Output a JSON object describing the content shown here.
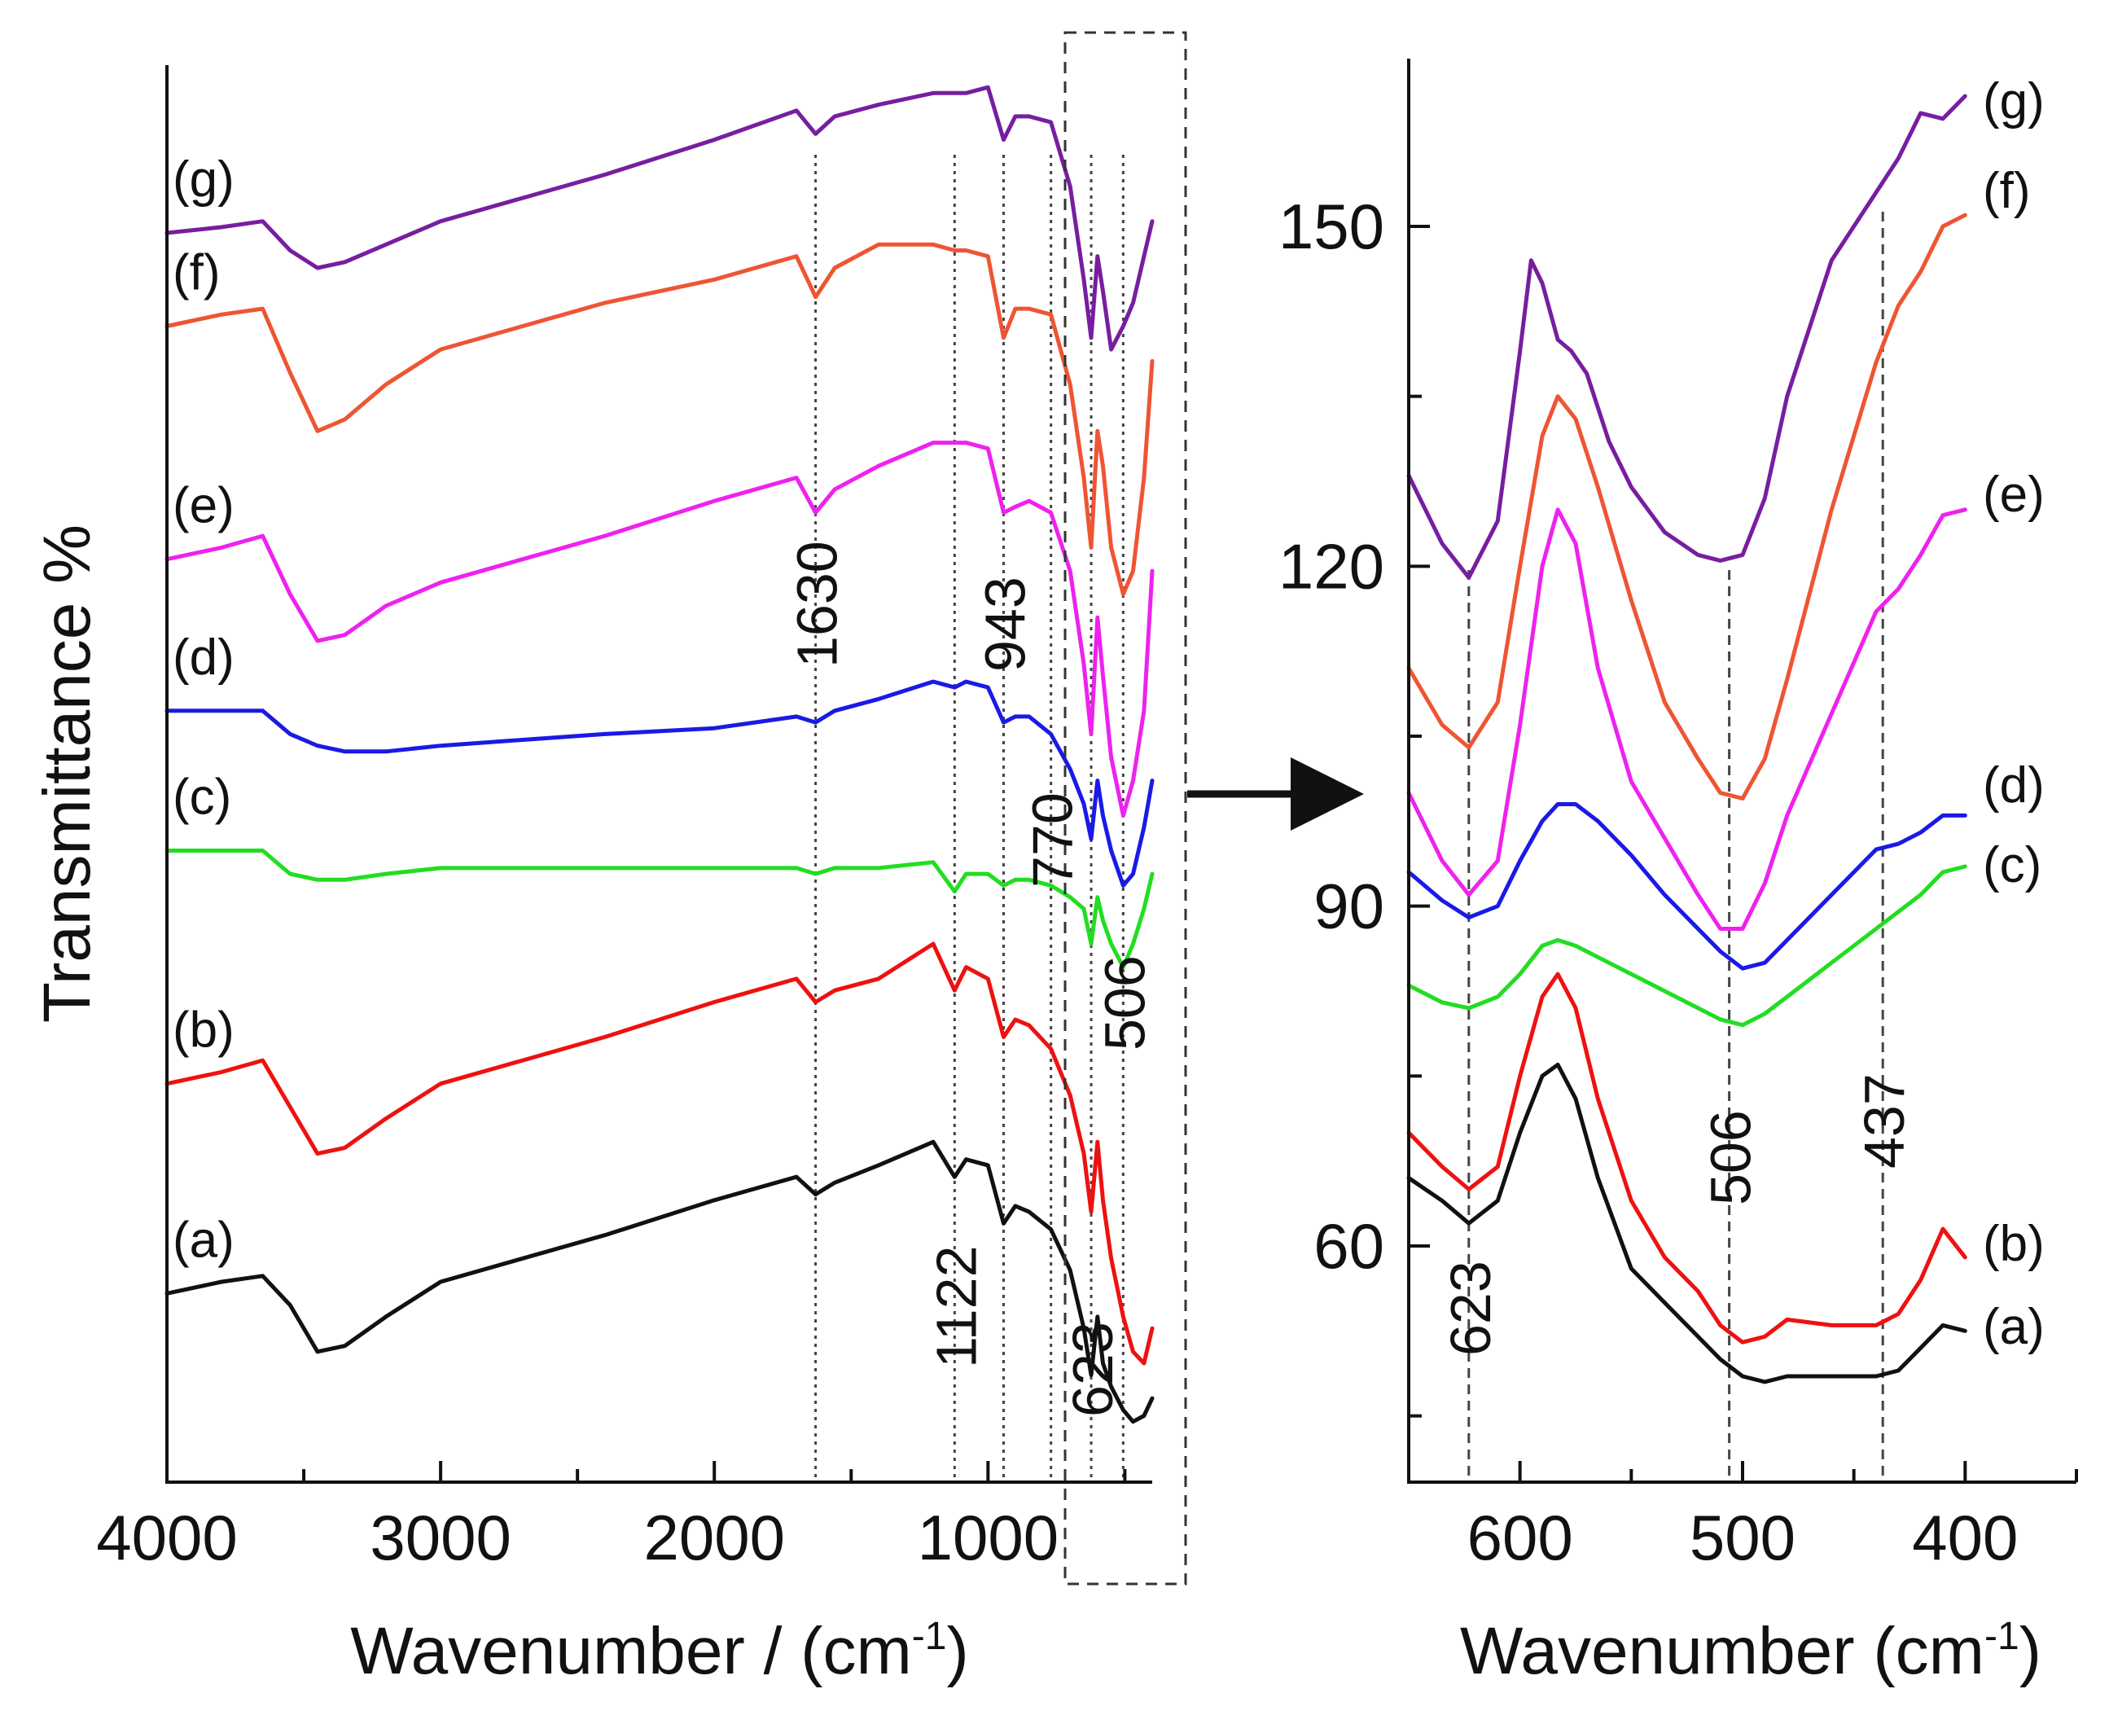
{
  "chart_data": [
    {
      "type": "line",
      "panel": "left",
      "title": "",
      "xlabel": "Wavenumber / (cm",
      "xlabel_superscript": "-1",
      "xlabel_suffix": ")",
      "ylabel": "Transmittance %",
      "xlim": [
        4000,
        400
      ],
      "x_reversed": true,
      "x_ticks": [
        4000,
        3000,
        2000,
        1000
      ],
      "y_ticks_shown": false,
      "grid": false,
      "legend": "inline labels at left",
      "peak_markers": [
        {
          "x": 1630,
          "label": "1630"
        },
        {
          "x": 1122,
          "label": "1122"
        },
        {
          "x": 943,
          "label": "943"
        },
        {
          "x": 770,
          "label": "770"
        },
        {
          "x": 623,
          "label": "623"
        },
        {
          "x": 506,
          "label": "506"
        }
      ],
      "series": [
        {
          "name": "(a)",
          "color": "#111111",
          "x": [
            4000,
            3800,
            3650,
            3550,
            3450,
            3350,
            3200,
            3000,
            2700,
            2400,
            2000,
            1700,
            1630,
            1560,
            1400,
            1200,
            1122,
            1080,
            1000,
            943,
            900,
            850,
            770,
            700,
            650,
            623,
            600,
            580,
            550,
            506,
            470,
            430,
            400
          ],
          "y": [
            12,
            13,
            13.5,
            11,
            7,
            7.5,
            10,
            13,
            15,
            17,
            20,
            22,
            20.5,
            21.5,
            23,
            25,
            22,
            23.5,
            23,
            18,
            19.5,
            19,
            17.5,
            14,
            9,
            5,
            10,
            6,
            4,
            2,
            1,
            1.5,
            3
          ]
        },
        {
          "name": "(b)",
          "color": "#ee1111",
          "x": [
            4000,
            3800,
            3650,
            3550,
            3450,
            3350,
            3200,
            3000,
            2700,
            2400,
            2000,
            1700,
            1630,
            1560,
            1400,
            1200,
            1122,
            1080,
            1000,
            943,
            900,
            850,
            770,
            700,
            650,
            623,
            600,
            580,
            550,
            506,
            470,
            430,
            400
          ],
          "y": [
            30,
            31,
            32,
            28,
            24,
            24.5,
            27,
            30,
            32,
            34,
            37,
            39,
            37,
            38,
            39,
            42,
            38,
            40,
            39,
            34,
            35.5,
            35,
            33,
            29,
            24,
            19,
            25,
            20,
            15,
            10,
            7,
            6,
            9
          ]
        },
        {
          "name": "(c)",
          "color": "#22dd22",
          "x": [
            4000,
            3800,
            3650,
            3550,
            3450,
            3350,
            3200,
            3000,
            2700,
            2400,
            2000,
            1700,
            1630,
            1560,
            1400,
            1200,
            1122,
            1080,
            1000,
            943,
            900,
            850,
            770,
            700,
            650,
            623,
            600,
            580,
            550,
            506,
            470,
            430,
            400
          ],
          "y": [
            50,
            50,
            50,
            48,
            47.5,
            47.5,
            48,
            48.5,
            48.5,
            48.5,
            48.5,
            48.5,
            48,
            48.5,
            48.5,
            49,
            46.5,
            48,
            48,
            47,
            47.5,
            47.5,
            47,
            46,
            45,
            42,
            46,
            44,
            42,
            40,
            42,
            45,
            48
          ]
        },
        {
          "name": "(d)",
          "color": "#1a1ae6",
          "x": [
            4000,
            3800,
            3650,
            3550,
            3450,
            3350,
            3200,
            3000,
            2700,
            2400,
            2000,
            1700,
            1630,
            1560,
            1400,
            1200,
            1122,
            1080,
            1000,
            943,
            900,
            850,
            770,
            700,
            650,
            623,
            600,
            580,
            550,
            506,
            470,
            430,
            400
          ],
          "y": [
            62,
            62,
            62,
            60,
            59,
            58.5,
            58.5,
            59,
            59.5,
            60,
            60.5,
            61.5,
            61,
            62,
            63,
            64.5,
            64,
            64.5,
            64,
            61,
            61.5,
            61.5,
            60,
            57,
            54,
            51,
            56,
            53,
            50,
            47,
            48,
            52,
            56
          ]
        },
        {
          "name": "(e)",
          "color": "#ee22ee",
          "x": [
            4000,
            3800,
            3650,
            3550,
            3450,
            3350,
            3200,
            3000,
            2700,
            2400,
            2000,
            1700,
            1630,
            1560,
            1400,
            1200,
            1122,
            1080,
            1000,
            943,
            900,
            850,
            770,
            700,
            650,
            623,
            600,
            580,
            550,
            506,
            470,
            430,
            400
          ],
          "y": [
            75,
            76,
            77,
            72,
            68,
            68.5,
            71,
            73,
            75,
            77,
            80,
            82,
            79,
            81,
            83,
            85,
            85,
            85,
            84.5,
            79,
            79.5,
            80,
            79,
            74,
            66,
            60,
            70,
            65,
            58,
            53,
            56,
            62,
            74
          ]
        },
        {
          "name": "(f)",
          "color": "#ee5533",
          "x": [
            4000,
            3800,
            3650,
            3550,
            3450,
            3350,
            3200,
            3000,
            2700,
            2400,
            2000,
            1700,
            1630,
            1560,
            1400,
            1200,
            1122,
            1080,
            1000,
            943,
            900,
            850,
            770,
            700,
            650,
            623,
            600,
            580,
            550,
            506,
            470,
            430,
            400
          ],
          "y": [
            95,
            96,
            96.5,
            91,
            86,
            87,
            90,
            93,
            95,
            97,
            99,
            101,
            97.5,
            100,
            102,
            102,
            101.5,
            101.5,
            101,
            94,
            96.5,
            96.5,
            96,
            90,
            82,
            76,
            86,
            83,
            76,
            72,
            74,
            82,
            92
          ]
        },
        {
          "name": "(g)",
          "color": "#771ea0",
          "x": [
            4000,
            3800,
            3650,
            3550,
            3450,
            3350,
            3200,
            3000,
            2700,
            2400,
            2000,
            1700,
            1630,
            1560,
            1400,
            1200,
            1122,
            1080,
            1000,
            943,
            900,
            850,
            770,
            700,
            650,
            623,
            600,
            580,
            550,
            506,
            470,
            430,
            400
          ],
          "y": [
            103,
            103.5,
            104,
            101.5,
            100,
            100.5,
            102,
            104,
            106,
            108,
            111,
            113.5,
            111.5,
            113,
            114,
            115,
            115,
            115,
            115.5,
            111,
            113,
            113,
            112.5,
            107,
            99,
            94,
            101,
            98,
            93,
            95,
            97,
            101,
            104
          ]
        }
      ]
    },
    {
      "type": "line",
      "panel": "right",
      "title": "",
      "xlabel": "Wavenumber (cm",
      "xlabel_superscript": "-1",
      "xlabel_suffix": ")",
      "xlim": [
        650,
        350
      ],
      "x_reversed": true,
      "x_ticks": [
        600,
        500,
        400
      ],
      "ylim": [
        45,
        165
      ],
      "y_ticks": [
        60,
        90,
        120,
        150
      ],
      "grid": false,
      "legend": "inline labels at right",
      "peak_markers": [
        {
          "x": 623,
          "label": "623"
        },
        {
          "x": 506,
          "label": "506"
        },
        {
          "x": 437,
          "label": "437"
        }
      ],
      "series": [
        {
          "name": "(a)",
          "color": "#111111",
          "x": [
            650,
            635,
            623,
            610,
            600,
            590,
            583,
            575,
            565,
            550,
            535,
            520,
            510,
            500,
            490,
            480,
            460,
            440,
            430,
            420,
            410,
            400
          ],
          "y": [
            66,
            64,
            62,
            64,
            70,
            75,
            76,
            73,
            66,
            58,
            55,
            52,
            50,
            48.5,
            48,
            48.5,
            48.5,
            48.5,
            49,
            51,
            53,
            52.5
          ]
        },
        {
          "name": "(b)",
          "color": "#ee1111",
          "x": [
            650,
            635,
            623,
            610,
            600,
            590,
            583,
            575,
            565,
            550,
            535,
            520,
            510,
            500,
            490,
            480,
            460,
            440,
            430,
            420,
            410,
            400
          ],
          "y": [
            70,
            67,
            65,
            67,
            75,
            82,
            84,
            81,
            73,
            64,
            59,
            56,
            53,
            51.5,
            52,
            53.5,
            53,
            53,
            54,
            57,
            61.5,
            59
          ]
        },
        {
          "name": "(c)",
          "color": "#22dd22",
          "x": [
            650,
            635,
            623,
            610,
            600,
            590,
            583,
            575,
            565,
            550,
            535,
            520,
            510,
            500,
            490,
            480,
            460,
            440,
            430,
            420,
            410,
            400
          ],
          "y": [
            83,
            81.5,
            81,
            82,
            84,
            86.5,
            87,
            86.5,
            85.5,
            84,
            82.5,
            81,
            80,
            79.5,
            80.5,
            82,
            85,
            88,
            89.5,
            91,
            93,
            93.5
          ]
        },
        {
          "name": "(d)",
          "color": "#1a1ae6",
          "x": [
            650,
            635,
            623,
            610,
            600,
            590,
            583,
            575,
            565,
            550,
            535,
            520,
            510,
            500,
            490,
            480,
            460,
            440,
            430,
            420,
            410,
            400
          ],
          "y": [
            93,
            90.5,
            89,
            90,
            94,
            97.5,
            99,
            99,
            97.5,
            94.5,
            91,
            88,
            86,
            84.5,
            85,
            87,
            91,
            95,
            95.5,
            96.5,
            98,
            98
          ]
        },
        {
          "name": "(e)",
          "color": "#ee22ee",
          "x": [
            650,
            635,
            623,
            610,
            600,
            590,
            583,
            575,
            565,
            550,
            535,
            520,
            510,
            500,
            490,
            480,
            460,
            440,
            430,
            420,
            410,
            400
          ],
          "y": [
            100,
            94,
            91,
            94,
            106,
            120,
            125,
            122,
            111,
            101,
            96,
            91,
            88,
            88,
            92,
            98,
            107,
            116,
            118,
            121,
            124.5,
            125
          ]
        },
        {
          "name": "(f)",
          "color": "#ee5533",
          "x": [
            650,
            635,
            623,
            610,
            600,
            590,
            583,
            575,
            565,
            550,
            535,
            520,
            510,
            500,
            490,
            480,
            460,
            440,
            430,
            420,
            410,
            400
          ],
          "y": [
            111,
            106,
            104,
            108,
            120,
            131.5,
            135,
            133,
            127,
            117,
            108,
            103,
            100,
            99.5,
            103,
            110,
            125,
            138,
            143,
            146,
            150,
            151
          ]
        },
        {
          "name": "(g)",
          "color": "#771ea0",
          "x": [
            650,
            635,
            623,
            610,
            600,
            595,
            590,
            583,
            577,
            570,
            560,
            550,
            535,
            520,
            510,
            500,
            490,
            480,
            460,
            440,
            430,
            420,
            410,
            400
          ],
          "y": [
            128,
            122,
            119,
            124,
            139,
            147,
            145,
            140,
            139,
            137,
            131,
            127,
            123,
            121,
            120.5,
            121,
            126,
            135,
            147,
            153,
            156,
            160,
            159.5,
            161.5
          ]
        }
      ]
    }
  ],
  "zoom_arrow": true
}
